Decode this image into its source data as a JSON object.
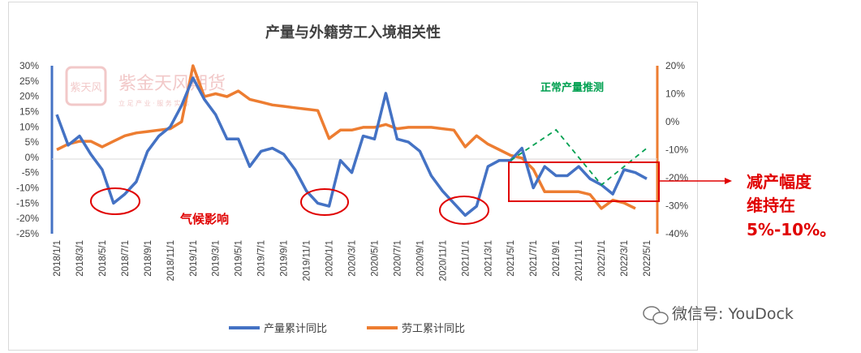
{
  "watermark": {
    "text": "紫金天风期货",
    "sub": "立 足 产 业  ·  服 务 实 体",
    "logo": "紫天风"
  },
  "annotations": {
    "weather": "气候影响",
    "green": "正常产量推测",
    "side_lines": [
      "减产幅度",
      "维持在",
      "5%-10%。"
    ]
  },
  "wechat": "微信号: YouDock",
  "colors": {
    "production": "#4472c4",
    "labor": "#ed7d31",
    "annotation": "#e00000",
    "projection": "#00a050"
  },
  "chart_data": {
    "type": "line",
    "title": "产量与外籍劳工入境相关性",
    "x": [
      "2018/1/1",
      "2018/2/1",
      "2018/3/1",
      "2018/4/1",
      "2018/5/1",
      "2018/6/1",
      "2018/7/1",
      "2018/8/1",
      "2018/9/1",
      "2018/10/1",
      "2018/11/1",
      "2018/12/1",
      "2019/1/1",
      "2019/2/1",
      "2019/3/1",
      "2019/4/1",
      "2019/5/1",
      "2019/6/1",
      "2019/7/1",
      "2019/8/1",
      "2019/9/1",
      "2019/10/1",
      "2019/11/1",
      "2019/12/1",
      "2020/1/1",
      "2020/2/1",
      "2020/3/1",
      "2020/4/1",
      "2020/5/1",
      "2020/6/1",
      "2020/7/1",
      "2020/8/1",
      "2020/9/1",
      "2020/10/1",
      "2020/11/1",
      "2020/12/1",
      "2021/1/1",
      "2021/2/1",
      "2021/3/1",
      "2021/4/1",
      "2021/5/1",
      "2021/6/1",
      "2021/7/1",
      "2021/8/1",
      "2021/9/1",
      "2021/10/1",
      "2021/11/1",
      "2021/12/1",
      "2022/1/1",
      "2022/2/1",
      "2022/3/1",
      "2022/4/1",
      "2022/5/1"
    ],
    "x_tick_labels": [
      "2018/1/1",
      "2018/3/1",
      "2018/5/1",
      "2018/7/1",
      "2018/9/1",
      "2018/11/1",
      "2019/1/1",
      "2019/3/1",
      "2019/5/1",
      "2019/7/1",
      "2019/9/1",
      "2019/11/1",
      "2020/1/1",
      "2020/3/1",
      "2020/5/1",
      "2020/7/1",
      "2020/9/1",
      "2020/11/1",
      "2021/1/1",
      "2021/3/1",
      "2021/5/1",
      "2021/7/1",
      "2021/9/1",
      "2021/11/1",
      "2022/1/1",
      "2022/3/1",
      "2022/5/1"
    ],
    "series": [
      {
        "name": "产量累计同比",
        "axis": "left",
        "values": [
          14,
          4,
          7,
          1,
          -4,
          -15,
          -12,
          -8,
          2,
          7,
          10,
          17,
          26,
          19,
          14,
          6,
          6,
          -3,
          2,
          3,
          1,
          -4,
          -11,
          -15,
          -16,
          -1,
          -5,
          7,
          6,
          21,
          6,
          5,
          2,
          -6,
          -11,
          -15,
          -19,
          -16,
          -3,
          -1,
          -1,
          3,
          -10,
          -3,
          -6,
          -6,
          -3,
          -7,
          -9,
          -12,
          -4,
          -5,
          -7
        ]
      },
      {
        "name": "劳工累计同比",
        "axis": "right",
        "values": [
          -10,
          -8,
          -7,
          -7,
          -9,
          -7,
          -5,
          -4,
          -3.5,
          -3,
          -2.5,
          0,
          20,
          9,
          10,
          9,
          11,
          8,
          7,
          6,
          5.5,
          5,
          4.5,
          4,
          -6,
          -3,
          -3,
          -2,
          -2,
          -1,
          -2.5,
          -2,
          -2,
          -2,
          -2.5,
          -3,
          -9,
          -5,
          -8,
          -10,
          -12,
          -13,
          -17,
          -25,
          -25,
          -25,
          -25,
          -26,
          -31,
          -28,
          -29,
          -31,
          null
        ]
      }
    ],
    "projection": {
      "name": "正常产量推测",
      "x": [
        "2021/5/1",
        "2021/9/1",
        "2022/1/1",
        "2022/5/1"
      ],
      "values": [
        -1,
        9,
        -9,
        3
      ]
    },
    "y_left": {
      "min": -25,
      "max": 30,
      "step": 5,
      "format": "percent"
    },
    "y_right": {
      "min": -40,
      "max": 20,
      "step": 10,
      "format": "percent"
    },
    "grid": false,
    "legend": "bottom"
  }
}
